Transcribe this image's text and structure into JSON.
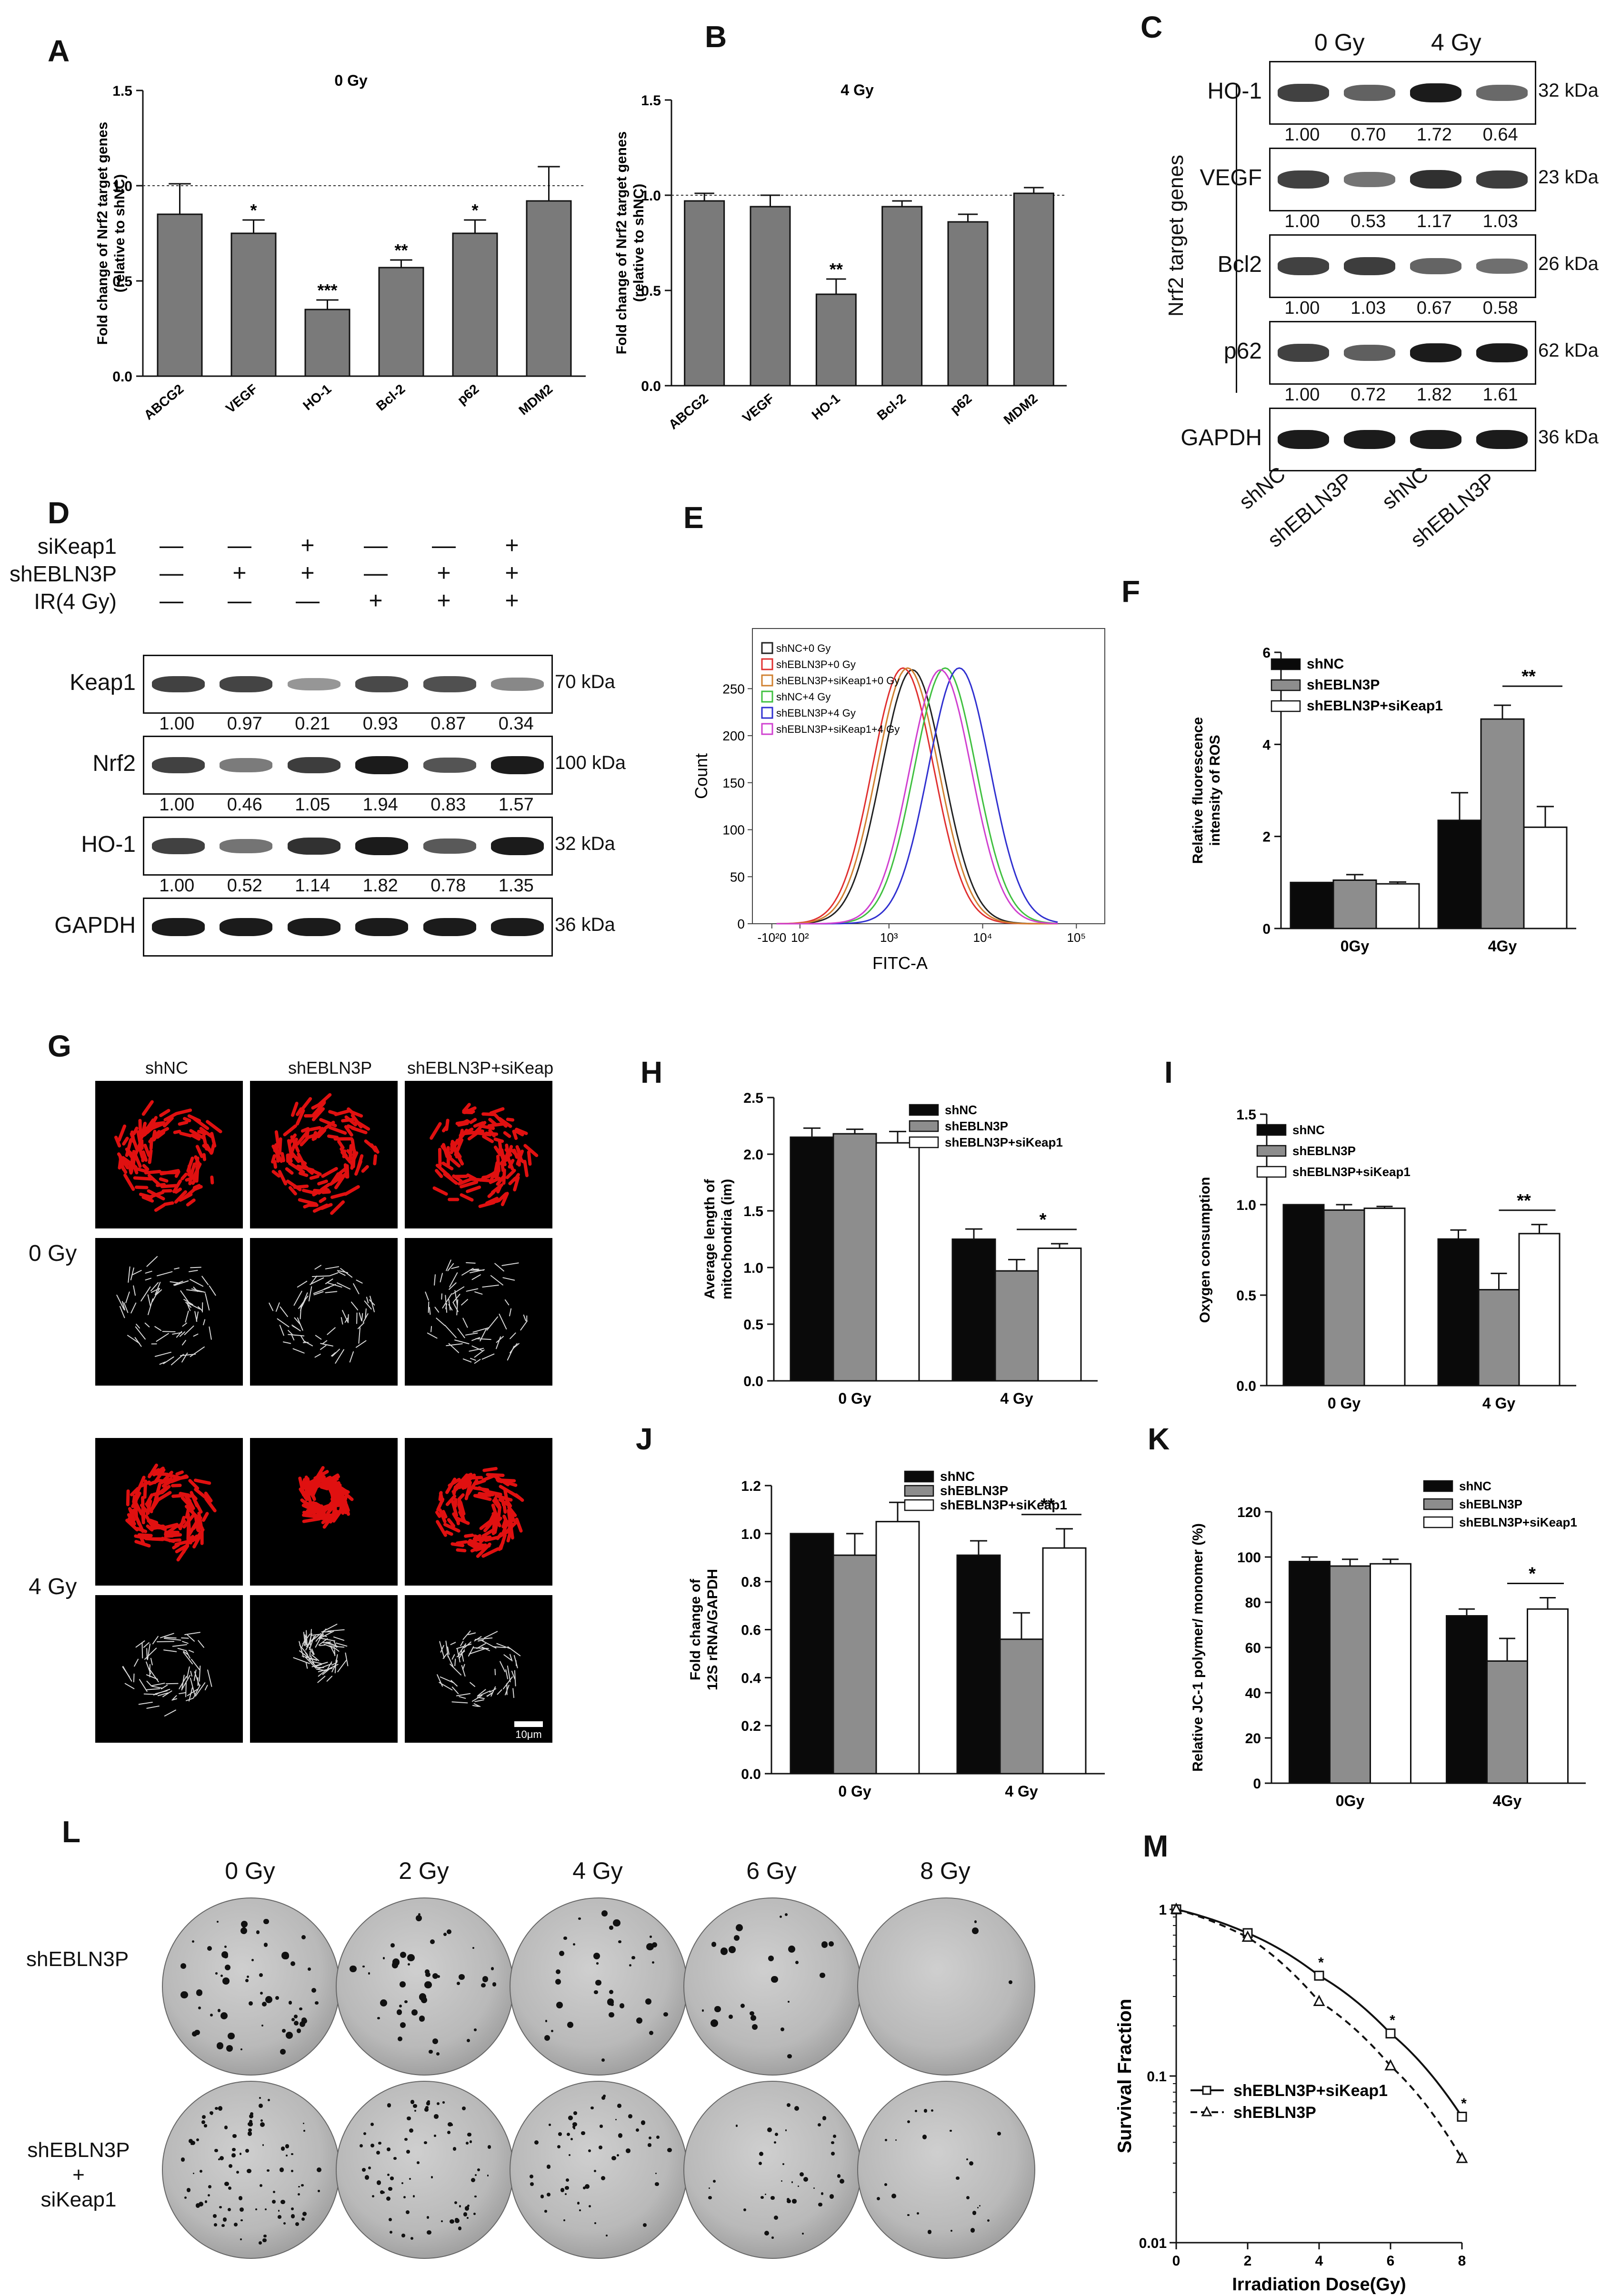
{
  "panel_labels": [
    "A",
    "B",
    "C",
    "D",
    "E",
    "F",
    "G",
    "H",
    "I",
    "J",
    "K",
    "L",
    "M"
  ],
  "chart_data": [
    {
      "id": "A",
      "type": "bar",
      "title": "0 Gy",
      "ylabel": "Fold change of Nrf2 target genes (relative to shNC)",
      "ylabel_lines": [
        "Fold change of Nrf2 target genes",
        "(relative to shNC)"
      ],
      "categories": [
        "ABCG2",
        "VEGF",
        "HO-1",
        "Bcl-2",
        "p62",
        "MDM2"
      ],
      "values": [
        0.85,
        0.75,
        0.35,
        0.57,
        0.75,
        0.92
      ],
      "errors": [
        0.16,
        0.07,
        0.05,
        0.04,
        0.07,
        0.18
      ],
      "significance": [
        "",
        "*",
        "***",
        "**",
        "*",
        ""
      ],
      "ylim": [
        0,
        1.5
      ],
      "yticks": [
        "0.0",
        "0.5",
        "1.0",
        "1.5"
      ],
      "reference_line": 1.0
    },
    {
      "id": "B",
      "type": "bar",
      "title": "4 Gy",
      "ylabel": "Fold change of Nrf2 target genes (relative to shNC)",
      "ylabel_lines": [
        "Fold change of Nrf2 target genes",
        "(relative to shNC)"
      ],
      "categories": [
        "ABCG2",
        "VEGF",
        "HO-1",
        "Bcl-2",
        "p62",
        "MDM2"
      ],
      "values": [
        0.97,
        0.94,
        0.48,
        0.94,
        0.86,
        1.01
      ],
      "errors": [
        0.04,
        0.06,
        0.08,
        0.03,
        0.04,
        0.03
      ],
      "significance": [
        "",
        "",
        "**",
        "",
        "",
        ""
      ],
      "ylim": [
        0,
        1.5
      ],
      "yticks": [
        "0.0",
        "0.5",
        "1.0",
        "1.5"
      ],
      "reference_line": 1.0
    },
    {
      "id": "E",
      "type": "line",
      "title": "",
      "xlabel": "FITC-A",
      "ylabel": "Count",
      "yticks": [
        "0",
        "50",
        "100",
        "150",
        "200",
        "250"
      ],
      "xticks": [
        "-10^2",
        "0",
        "10^2",
        "10^3",
        "10^4",
        "10^5"
      ],
      "xtick_labels": [
        "-10²0",
        "10²",
        "10³",
        "10⁴",
        "10⁵"
      ],
      "legend": [
        "shNC+0 Gy",
        "shEBLN3P+0 Gy",
        "shEBLN3P+siKeap1+0 Gy",
        "shNC+4 Gy",
        "shEBLN3P+4 Gy",
        "shEBLN3P+siKeap1+4 Gy"
      ],
      "series_colors": [
        "#222222",
        "#e03030",
        "#d08030",
        "#40c040",
        "#3030d0",
        "#d040d0"
      ],
      "peak_positions_log": [
        3.25,
        3.15,
        3.2,
        3.6,
        3.75,
        3.55
      ],
      "peak_heights": [
        270,
        272,
        272,
        272,
        272,
        270
      ]
    },
    {
      "id": "F",
      "type": "bar",
      "title": "",
      "ylabel": "Relative fluorescence intensity of ROS",
      "ylabel_lines": [
        "Relative fluorescence",
        "intensity of ROS"
      ],
      "categories": [
        "0Gy",
        "4Gy"
      ],
      "series": [
        {
          "name": "shNC",
          "values": [
            1.0,
            2.35
          ],
          "errors": [
            0.0,
            0.6
          ]
        },
        {
          "name": "shEBLN3P",
          "values": [
            1.05,
            4.55
          ],
          "errors": [
            0.12,
            0.3
          ]
        },
        {
          "name": "shEBLN3P+siKeap1",
          "values": [
            0.97,
            2.2
          ],
          "errors": [
            0.04,
            0.45
          ]
        }
      ],
      "ylim": [
        0,
        6
      ],
      "yticks": [
        "0",
        "2",
        "4",
        "6"
      ],
      "significance": "**"
    },
    {
      "id": "H",
      "type": "bar",
      "title": "",
      "ylabel": "Average length of mitochondria (im)",
      "ylabel_lines": [
        "Average length of",
        "mitochondria (im)"
      ],
      "categories": [
        "0 Gy",
        "4 Gy"
      ],
      "series": [
        {
          "name": "shNC",
          "values": [
            2.15,
            1.25
          ],
          "errors": [
            0.08,
            0.09
          ]
        },
        {
          "name": "shEBLN3P",
          "values": [
            2.18,
            0.97
          ],
          "errors": [
            0.04,
            0.1
          ]
        },
        {
          "name": "shEBLN3P+siKeap1",
          "values": [
            2.1,
            1.17
          ],
          "errors": [
            0.1,
            0.04
          ]
        }
      ],
      "ylim": [
        0,
        2.5
      ],
      "yticks": [
        "0.0",
        "0.5",
        "1.0",
        "1.5",
        "2.0",
        "2.5"
      ],
      "significance": "*"
    },
    {
      "id": "I",
      "type": "bar",
      "title": "",
      "ylabel": "Oxygen consumption",
      "ylabel_lines": [
        "Oxygen consumption"
      ],
      "categories": [
        "0 Gy",
        "4 Gy"
      ],
      "series": [
        {
          "name": "shNC",
          "values": [
            1.0,
            0.81
          ],
          "errors": [
            0.0,
            0.05
          ]
        },
        {
          "name": "shEBLN3P",
          "values": [
            0.97,
            0.53
          ],
          "errors": [
            0.03,
            0.09
          ]
        },
        {
          "name": "shEBLN3P+siKeap1",
          "values": [
            0.98,
            0.84
          ],
          "errors": [
            0.01,
            0.05
          ]
        }
      ],
      "ylim": [
        0,
        1.5
      ],
      "yticks": [
        "0.0",
        "0.5",
        "1.0",
        "1.5"
      ],
      "significance": "**"
    },
    {
      "id": "J",
      "type": "bar",
      "title": "",
      "ylabel": "Fold change of 12S rRNA/GAPDH",
      "ylabel_lines": [
        "Fold change of",
        "12S rRNA/GAPDH"
      ],
      "categories": [
        "0 Gy",
        "4 Gy"
      ],
      "series": [
        {
          "name": "shNC",
          "values": [
            1.0,
            0.91
          ],
          "errors": [
            0.0,
            0.06
          ]
        },
        {
          "name": "shEBLN3P",
          "values": [
            0.91,
            0.56
          ],
          "errors": [
            0.09,
            0.11
          ]
        },
        {
          "name": "shEBLN3P+siKeap1",
          "values": [
            1.05,
            0.94
          ],
          "errors": [
            0.08,
            0.08
          ]
        }
      ],
      "ylim": [
        0,
        1.2
      ],
      "yticks": [
        "0.0",
        "0.2",
        "0.4",
        "0.6",
        "0.8",
        "1.0",
        "1.2"
      ],
      "significance": "**"
    },
    {
      "id": "K",
      "type": "bar",
      "title": "",
      "ylabel": "Relative JC-1 polymer/ monomer (%)",
      "ylabel_lines": [
        "Relative JC-1 polymer/ monomer (%)"
      ],
      "categories": [
        "0Gy",
        "4Gy"
      ],
      "series": [
        {
          "name": "shNC",
          "values": [
            98,
            74
          ],
          "errors": [
            2,
            3
          ]
        },
        {
          "name": "shEBLN3P",
          "values": [
            96,
            54
          ],
          "errors": [
            3,
            10
          ]
        },
        {
          "name": "shEBLN3P+siKeap1",
          "values": [
            97,
            77
          ],
          "errors": [
            2,
            5
          ]
        }
      ],
      "ylim": [
        0,
        120
      ],
      "yticks": [
        "0",
        "20",
        "40",
        "60",
        "80",
        "100",
        "120"
      ],
      "significance": "*"
    },
    {
      "id": "M",
      "type": "line",
      "title": "",
      "xlabel": "Irradiation Dose(Gy)",
      "ylabel": "Survival Fraction",
      "x": [
        0,
        2,
        4,
        6,
        8
      ],
      "series": [
        {
          "name": "shEBLN3P+siKeap1",
          "values": [
            1.0,
            0.72,
            0.4,
            0.18,
            0.057
          ],
          "style": "solid",
          "marker": "square"
        },
        {
          "name": "shEBLN3P",
          "values": [
            1.0,
            0.68,
            0.28,
            0.115,
            0.032
          ],
          "style": "dashed",
          "marker": "triangle"
        }
      ],
      "significance_x": [
        4,
        6,
        8
      ],
      "yscale": "log",
      "ylim": [
        0.01,
        1
      ],
      "yticks": [
        "0.01",
        "0.1",
        "1"
      ],
      "xlim": [
        0,
        8
      ],
      "xticks": [
        "0",
        "2",
        "4",
        "6",
        "8"
      ]
    }
  ],
  "bar_legend": [
    "shNC",
    "shEBLN3P",
    "shEBLN3P+siKeap1"
  ],
  "blot_c": {
    "col_headers": [
      "0 Gy",
      "4 Gy"
    ],
    "group_label": "Nrf2 target genes",
    "lanes": [
      "shNC",
      "shEBLN3P",
      "shNC",
      "shEBLN3P"
    ],
    "rows": [
      {
        "name": "HO-1",
        "kda": "32 kDa",
        "values": [
          "1.00",
          "0.70",
          "1.72",
          "0.64"
        ]
      },
      {
        "name": "VEGF",
        "kda": "23 kDa",
        "values": [
          "1.00",
          "0.53",
          "1.17",
          "1.03"
        ]
      },
      {
        "name": "Bcl2",
        "kda": "26 kDa",
        "values": [
          "1.00",
          "1.03",
          "0.67",
          "0.58"
        ]
      },
      {
        "name": "p62",
        "kda": "62 kDa",
        "values": [
          "1.00",
          "0.72",
          "1.82",
          "1.61"
        ]
      },
      {
        "name": "GAPDH",
        "kda": "36 kDa",
        "values": []
      }
    ]
  },
  "blot_d": {
    "conditions": [
      {
        "name": "siKeap1",
        "signs": [
          "—",
          "—",
          "+",
          "—",
          "—",
          "+"
        ]
      },
      {
        "name": "shEBLN3P",
        "signs": [
          "—",
          "+",
          "+",
          "—",
          "+",
          "+"
        ]
      },
      {
        "name": "IR(4 Gy)",
        "signs": [
          "—",
          "—",
          "—",
          "+",
          "+",
          "+"
        ]
      }
    ],
    "rows": [
      {
        "name": "Keap1",
        "kda": "70 kDa",
        "values": [
          "1.00",
          "0.97",
          "0.21",
          "0.93",
          "0.87",
          "0.34"
        ]
      },
      {
        "name": "Nrf2",
        "kda": "100 kDa",
        "values": [
          "1.00",
          "0.46",
          "1.05",
          "1.94",
          "0.83",
          "1.57"
        ]
      },
      {
        "name": "HO-1",
        "kda": "32 kDa",
        "values": [
          "1.00",
          "0.52",
          "1.14",
          "1.82",
          "0.78",
          "1.35"
        ]
      },
      {
        "name": "GAPDH",
        "kda": "36 kDa",
        "values": []
      }
    ]
  },
  "panel_g": {
    "col_headers": [
      "shNC",
      "shEBLN3P",
      "shEBLN3P+siKeap"
    ],
    "row_labels": [
      "0 Gy",
      "4 Gy"
    ],
    "scale_bar": "10μm"
  },
  "panel_l": {
    "doses": [
      "0 Gy",
      "2 Gy",
      "4 Gy",
      "6 Gy",
      "8 Gy"
    ],
    "row_labels": [
      "shEBLN3P",
      "shEBLN3P\n+\nsiKeap1"
    ],
    "row_label_lines": [
      [
        "shEBLN3P"
      ],
      [
        "shEBLN3P",
        "+",
        "siKeap1"
      ]
    ],
    "colony_density_top": [
      60,
      45,
      35,
      25,
      3
    ],
    "colony_density_bottom": [
      90,
      75,
      55,
      40,
      25
    ]
  }
}
